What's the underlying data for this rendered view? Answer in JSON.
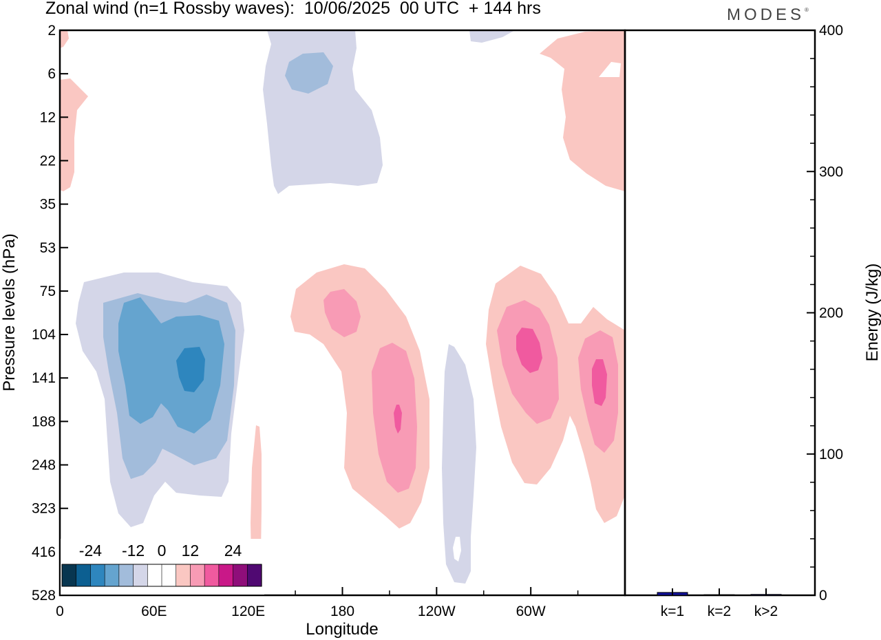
{
  "title": "Zonal wind (n=1 Rossby waves):  10/06/2025  00 UTC  + 144 hrs",
  "brand": "MODES",
  "brand_mark": "®",
  "chart_data": [
    {
      "type": "heatmap",
      "title": "Zonal wind (n=1 Rossby waves):  10/06/2025  00 UTC  + 144 hrs",
      "xlabel": "Longitude",
      "ylabel": "Pressure levels (hPa)",
      "x_tick_labels": [
        "0",
        "60E",
        "120E",
        "180",
        "120W",
        "60W"
      ],
      "x_tick_degrees": [
        0,
        60,
        120,
        180,
        240,
        300
      ],
      "xlim": [
        0,
        360
      ],
      "y_tick_labels": [
        "2",
        "6",
        "12",
        "22",
        "35",
        "53",
        "75",
        "104",
        "141",
        "188",
        "248",
        "323",
        "416",
        "528"
      ],
      "colorbar": {
        "tick_labels": [
          "-24",
          "-12",
          "0",
          "12",
          "24"
        ],
        "colors": [
          "#083650",
          "#0c5f91",
          "#2e86be",
          "#65a4cf",
          "#a2bcdb",
          "#d4d6e8",
          "#ffffff",
          "#ffffff",
          "#fac7c2",
          "#f89bb5",
          "#f05a9f",
          "#c91888",
          "#8f0e7a",
          "#500972"
        ]
      },
      "features": [
        {
          "sign": "negative",
          "max_magnitude_level": 4,
          "lon": 82,
          "pressure_hPa": 130
        },
        {
          "sign": "negative",
          "max_magnitude_level": 2,
          "lon": 160,
          "pressure_hPa": 6
        },
        {
          "sign": "negative",
          "max_magnitude_level": 1,
          "lon": 255,
          "pressure_hPa": 200
        },
        {
          "sign": "positive",
          "max_magnitude_level": 2,
          "lon": 168,
          "pressure_hPa": 85
        },
        {
          "sign": "positive",
          "max_magnitude_level": 3,
          "lon": 215,
          "pressure_hPa": 175
        },
        {
          "sign": "positive",
          "max_magnitude_level": 3,
          "lon": 301,
          "pressure_hPa": 110
        },
        {
          "sign": "positive",
          "max_magnitude_level": 3,
          "lon": 344,
          "pressure_hPa": 140
        },
        {
          "sign": "positive",
          "max_magnitude_level": 1,
          "lon": 355,
          "pressure_hPa": 8
        },
        {
          "sign": "positive",
          "max_magnitude_level": 1,
          "lon": 4,
          "pressure_hPa": 15
        }
      ]
    },
    {
      "type": "bar",
      "categories": [
        "k=1",
        "k=2",
        "k>2"
      ],
      "values": [
        2.0,
        0.4,
        0.6
      ],
      "ylabel": "Energy (J/kg)",
      "ylim": [
        0,
        400
      ],
      "y_ticks": [
        0,
        100,
        200,
        300,
        400
      ],
      "bar_color": "#11119a"
    }
  ]
}
